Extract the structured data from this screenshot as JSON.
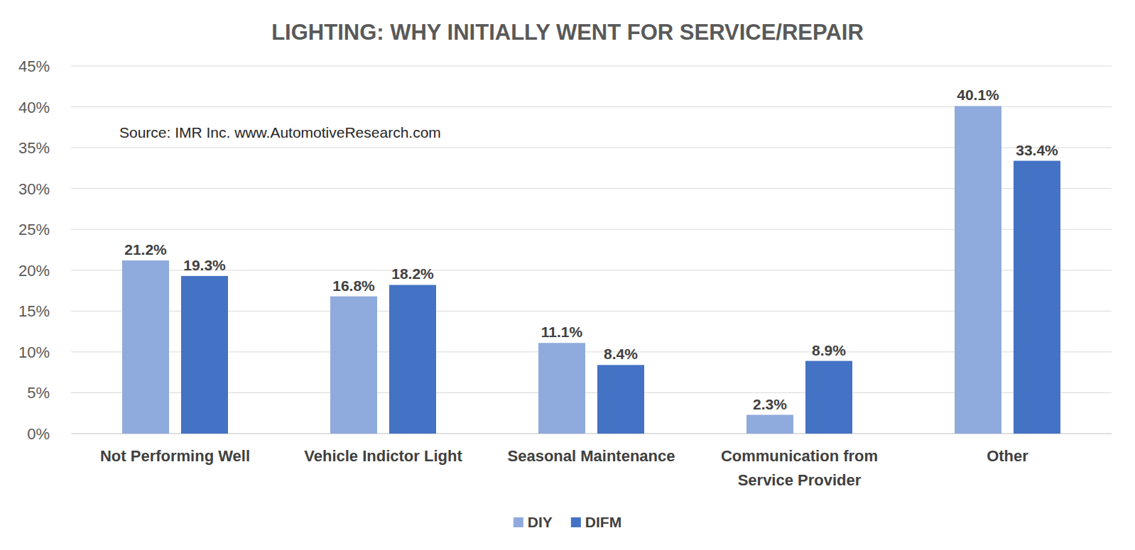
{
  "chart_data": {
    "type": "bar",
    "title": "LIGHTING: WHY INITIALLY WENT FOR SERVICE/REPAIR",
    "annotations": [
      "Source: IMR Inc. www.AutomotiveResearch.com"
    ],
    "categories": [
      "Not Performing Well",
      "Vehicle Indictor Light",
      "Seasonal Maintenance",
      "Communication from Service Provider",
      "Other"
    ],
    "series": [
      {
        "name": "DIY",
        "color": "#8faadc",
        "values": [
          21.2,
          16.8,
          11.1,
          2.3,
          40.1
        ],
        "value_labels": [
          "21.2%",
          "16.8%",
          "11.1%",
          "2.3%",
          "40.1%"
        ]
      },
      {
        "name": "DIFM",
        "color": "#4472c4",
        "values": [
          19.3,
          18.2,
          8.4,
          8.9,
          33.4
        ],
        "value_labels": [
          "19.3%",
          "18.2%",
          "8.4%",
          "8.9%",
          "33.4%"
        ]
      }
    ],
    "ylim": [
      0,
      45
    ],
    "yticks": [
      {
        "value": 0,
        "label": "0%"
      },
      {
        "value": 5,
        "label": "5%"
      },
      {
        "value": 10,
        "label": "10%"
      },
      {
        "value": 15,
        "label": "15%"
      },
      {
        "value": 20,
        "label": "20%"
      },
      {
        "value": 25,
        "label": "25%"
      },
      {
        "value": 30,
        "label": "30%"
      },
      {
        "value": 35,
        "label": "35%"
      },
      {
        "value": 40,
        "label": "40%"
      },
      {
        "value": 45,
        "label": "45%"
      }
    ],
    "grid": true,
    "data_labels": true,
    "legend": "bottom"
  }
}
